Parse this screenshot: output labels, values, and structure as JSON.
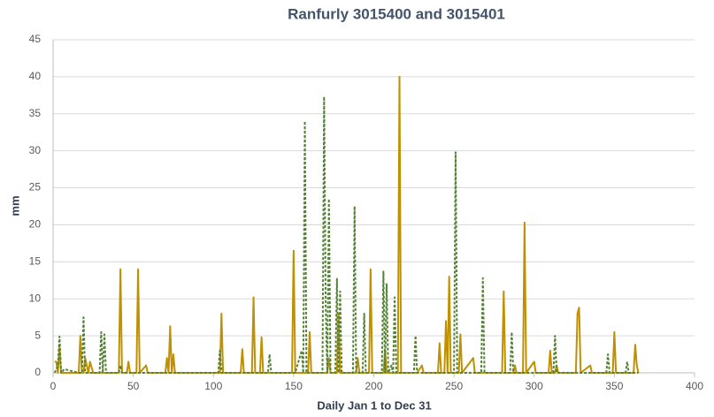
{
  "chart_data": {
    "type": "line",
    "title": "Ranfurly 3015400 and 3015401",
    "x_label": "Daily Jan 1 to Dec 31",
    "y_label": "mm",
    "x": [
      1,
      2,
      3,
      4,
      5,
      7,
      16,
      17,
      18,
      19,
      20,
      22,
      23,
      25,
      29,
      30,
      31,
      32,
      33,
      41,
      42,
      43,
      46,
      47,
      48,
      52,
      53,
      54,
      58,
      59,
      70,
      71,
      72,
      73,
      74,
      75,
      76,
      103,
      104,
      105,
      106,
      117,
      118,
      119,
      124,
      125,
      126,
      129,
      130,
      131,
      134,
      135,
      136,
      149,
      150,
      151,
      155,
      156,
      157,
      158,
      159,
      160,
      161,
      168,
      169,
      170,
      171,
      172,
      173,
      176,
      177,
      178,
      179,
      180,
      187,
      188,
      189,
      190,
      191,
      193,
      194,
      195,
      197,
      198,
      199,
      205,
      206,
      207,
      208,
      209,
      211,
      212,
      213,
      214,
      215,
      216,
      217,
      225,
      226,
      227,
      230,
      231,
      240,
      241,
      242,
      244,
      245,
      246,
      247,
      248,
      250,
      251,
      252,
      253,
      254,
      255,
      262,
      263,
      267,
      268,
      269,
      280,
      281,
      282,
      285,
      286,
      287,
      288,
      289,
      293,
      294,
      295,
      300,
      301,
      309,
      310,
      311,
      312,
      313,
      314,
      315,
      326,
      327,
      328,
      329,
      335,
      336,
      345,
      346,
      347,
      349,
      350,
      351,
      357,
      358,
      359,
      362,
      363,
      364,
      365
    ],
    "series": [
      {
        "color": "#bf9000",
        "dash": "solid",
        "values": [
          1.5,
          1.5,
          0,
          3.5,
          0,
          0,
          0,
          5,
          0,
          0,
          2,
          0,
          1.5,
          0,
          0,
          0,
          0,
          0,
          0,
          0,
          14,
          0,
          0,
          1.5,
          0,
          0,
          14,
          0,
          1,
          0,
          0,
          2,
          0,
          6.3,
          0,
          2.5,
          0,
          0,
          0,
          8,
          0,
          0,
          3.2,
          0,
          0,
          10.2,
          0,
          0,
          4.8,
          0,
          0,
          0,
          0,
          0,
          16.5,
          0,
          0,
          0,
          0,
          0,
          0,
          5.5,
          0,
          0,
          0,
          0,
          0,
          2,
          0,
          0,
          0,
          8,
          0,
          0,
          0,
          0,
          0,
          2,
          0,
          0,
          0,
          0,
          0,
          14,
          0,
          0,
          0,
          3,
          0,
          0,
          0,
          0,
          0,
          0,
          0,
          40,
          0,
          0,
          0,
          0,
          1,
          0,
          0,
          4,
          0,
          0,
          7,
          0,
          13,
          0,
          0,
          0,
          0,
          0,
          5.2,
          0,
          2,
          0,
          0,
          0,
          0,
          0,
          11,
          0,
          0,
          0,
          0,
          1,
          0,
          0,
          20.3,
          0,
          1.5,
          0,
          0,
          3,
          0,
          0,
          0,
          1,
          0,
          0,
          8,
          8.8,
          0,
          1,
          0,
          0,
          0,
          0,
          0,
          5.5,
          0,
          0,
          0,
          0,
          0,
          3.8,
          1,
          0
        ]
      },
      {
        "color": "#548235",
        "dash": "dashed",
        "values": [
          0,
          0.5,
          1,
          4.9,
          0,
          0.5,
          0,
          0,
          0,
          7.5,
          0,
          0,
          0,
          0,
          0,
          5.5,
          0,
          5.2,
          0,
          0,
          1,
          0,
          0,
          0,
          0,
          0,
          0,
          0,
          0,
          0,
          0,
          0,
          0,
          0,
          0,
          0,
          0,
          0,
          3,
          0,
          0,
          0,
          0,
          0,
          0,
          0,
          0,
          0,
          0,
          0,
          0,
          2.5,
          0,
          0,
          0,
          0,
          3,
          0,
          34,
          0,
          0,
          0,
          0,
          0,
          37.3,
          9,
          0,
          23.5,
          0,
          0,
          12.7,
          0,
          11,
          0,
          0,
          22.5,
          0,
          0,
          0,
          0,
          8,
          0,
          0,
          0,
          0,
          0,
          13.7,
          0,
          12,
          0,
          1,
          0,
          10.2,
          0,
          0,
          0,
          0,
          0,
          5,
          0,
          0,
          0,
          0,
          0,
          0,
          0,
          0,
          0,
          0,
          0,
          0,
          29.8,
          0,
          0,
          0,
          0,
          0,
          0,
          0,
          12.8,
          0,
          0,
          0,
          0,
          0,
          5.5,
          0,
          0,
          0,
          0,
          0,
          0,
          0,
          0,
          0,
          0,
          0,
          0,
          5,
          0,
          0,
          0,
          0,
          0,
          0,
          0,
          0,
          0,
          2.5,
          0,
          0,
          0,
          0,
          0,
          1.5,
          0,
          0,
          0,
          0,
          0
        ]
      }
    ],
    "xlim": [
      0,
      400
    ],
    "xticks": [
      0,
      50,
      100,
      150,
      200,
      250,
      300,
      350,
      400
    ],
    "ylim": [
      0,
      45
    ],
    "yticks": [
      0,
      5,
      10,
      15,
      20,
      25,
      30,
      35,
      40,
      45
    ],
    "grid": true
  }
}
